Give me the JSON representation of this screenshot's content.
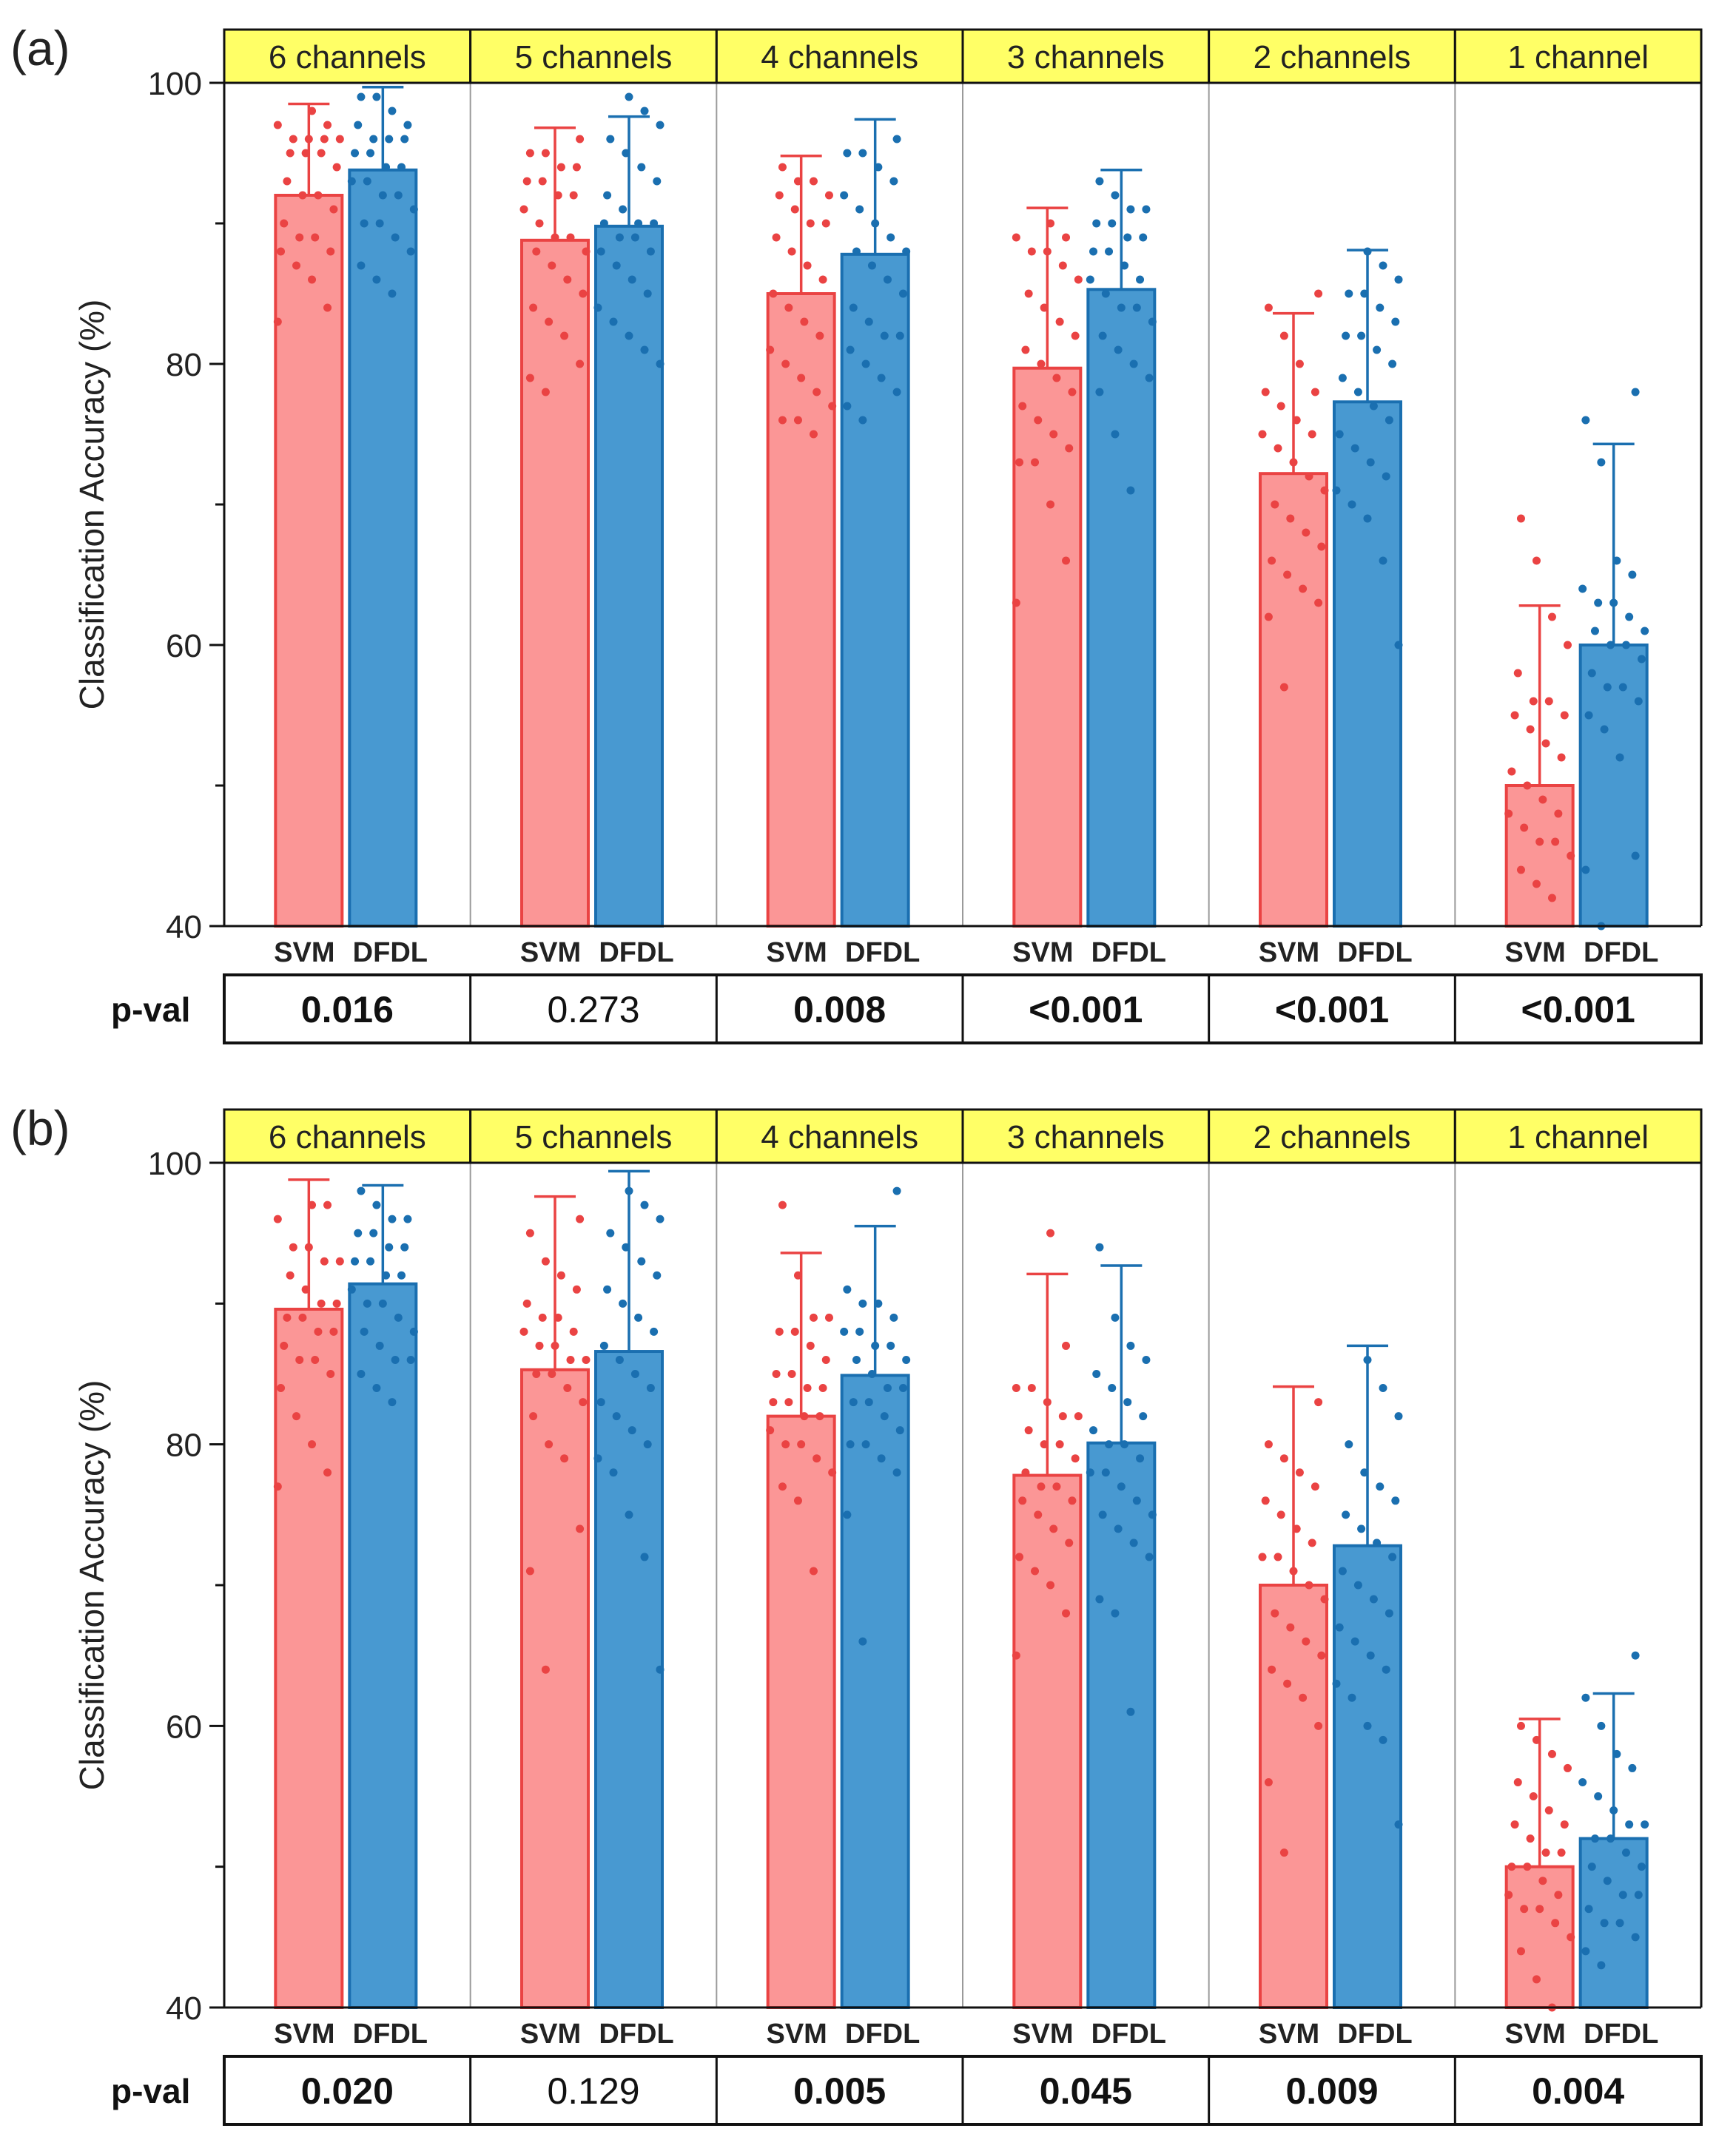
{
  "figure": {
    "colors": {
      "svm_fill": "#fb9696",
      "svm_edge": "#ea4343",
      "dfdl_fill": "#4899d1",
      "dfdl_edge": "#1a6fb0",
      "header_fill": "#ffff66",
      "separator": "#9a9a9a"
    }
  },
  "chart_data": [
    {
      "type": "bar",
      "panel_label": "(a)",
      "ylabel": "Classification Accuracy (%)",
      "ylim": [
        40,
        100
      ],
      "yticks": [
        "40",
        "60",
        "80",
        "100"
      ],
      "legend": [
        "SVM",
        "DFDL"
      ],
      "bar_labels": [
        "SVM",
        "DFDL"
      ],
      "table_label": "p-val",
      "categories": [
        "6 channels",
        "5 channels",
        "4 channels",
        "3 channels",
        "2 channels",
        "1 channel"
      ],
      "pvals": [
        "0.016",
        "0.273",
        "0.008",
        "<0.001",
        "<0.001",
        "<0.001"
      ],
      "pval_bold": [
        true,
        false,
        true,
        true,
        true,
        true
      ],
      "series": [
        {
          "name": "SVM",
          "values": [
            92.0,
            88.8,
            85.0,
            79.7,
            72.2,
            50.0
          ],
          "error": [
            6.5,
            8.0,
            9.8,
            11.4,
            11.4,
            12.8
          ],
          "points": [
            [
              83,
              84,
              86,
              87,
              88,
              88,
              89,
              89,
              90,
              91,
              92,
              92,
              93,
              94,
              95,
              95,
              95,
              96,
              96,
              96,
              96,
              97,
              97,
              98
            ],
            [
              78,
              79,
              80,
              82,
              83,
              84,
              85,
              86,
              87,
              88,
              88,
              89,
              89,
              90,
              91,
              92,
              92,
              93,
              93,
              94,
              94,
              95,
              95,
              96
            ],
            [
              75,
              76,
              76,
              77,
              78,
              79,
              80,
              81,
              82,
              83,
              84,
              85,
              86,
              87,
              88,
              89,
              90,
              90,
              91,
              92,
              92,
              93,
              93,
              94
            ],
            [
              63,
              66,
              70,
              73,
              73,
              74,
              75,
              76,
              77,
              78,
              79,
              80,
              81,
              82,
              83,
              84,
              85,
              86,
              87,
              88,
              88,
              89,
              89,
              90
            ],
            [
              57,
              62,
              63,
              64,
              65,
              66,
              67,
              68,
              69,
              70,
              71,
              72,
              73,
              74,
              75,
              75,
              76,
              77,
              78,
              78,
              80,
              82,
              84,
              85
            ],
            [
              42,
              43,
              44,
              45,
              46,
              46,
              47,
              48,
              48,
              49,
              50,
              51,
              52,
              53,
              54,
              55,
              55,
              56,
              56,
              58,
              60,
              62,
              66,
              69
            ]
          ]
        },
        {
          "name": "DFDL",
          "values": [
            93.8,
            89.8,
            87.8,
            85.3,
            77.3,
            60.0
          ],
          "error": [
            5.9,
            7.8,
            9.6,
            8.5,
            10.8,
            14.3
          ],
          "points": [
            [
              85,
              86,
              87,
              88,
              89,
              90,
              90,
              91,
              92,
              92,
              93,
              93,
              94,
              94,
              95,
              95,
              96,
              96,
              96,
              97,
              97,
              98,
              99,
              99
            ],
            [
              80,
              81,
              82,
              83,
              84,
              85,
              86,
              87,
              88,
              88,
              89,
              89,
              90,
              90,
              90,
              91,
              92,
              93,
              94,
              95,
              96,
              97,
              98,
              99
            ],
            [
              76,
              77,
              78,
              79,
              80,
              81,
              82,
              82,
              83,
              84,
              85,
              86,
              87,
              88,
              88,
              89,
              90,
              91,
              92,
              93,
              94,
              95,
              95,
              96
            ],
            [
              71,
              75,
              78,
              79,
              80,
              81,
              82,
              83,
              84,
              84,
              85,
              86,
              86,
              87,
              88,
              88,
              89,
              89,
              90,
              90,
              91,
              91,
              92,
              93
            ],
            [
              60,
              66,
              69,
              70,
              71,
              72,
              73,
              74,
              75,
              76,
              77,
              78,
              79,
              80,
              81,
              82,
              82,
              83,
              84,
              85,
              85,
              86,
              87,
              88
            ],
            [
              40,
              44,
              45,
              52,
              54,
              55,
              56,
              57,
              57,
              58,
              59,
              60,
              60,
              61,
              61,
              62,
              63,
              63,
              64,
              65,
              66,
              73,
              76,
              78
            ]
          ]
        }
      ]
    },
    {
      "type": "bar",
      "panel_label": "(b)",
      "ylabel": "Classification Accuracy (%)",
      "ylim": [
        40,
        100
      ],
      "yticks": [
        "40",
        "60",
        "80",
        "100"
      ],
      "legend": [
        "SVM",
        "DFDL"
      ],
      "bar_labels": [
        "SVM",
        "DFDL"
      ],
      "table_label": "p-val",
      "categories": [
        "6 channels",
        "5 channels",
        "4 channels",
        "3 channels",
        "2 channels",
        "1 channel"
      ],
      "pvals": [
        "0.020",
        "0.129",
        "0.005",
        "0.045",
        "0.009",
        "0.004"
      ],
      "pval_bold": [
        true,
        false,
        true,
        true,
        true,
        true
      ],
      "series": [
        {
          "name": "SVM",
          "values": [
            89.6,
            85.3,
            82.0,
            77.8,
            70.0,
            50.0
          ],
          "error": [
            9.2,
            12.3,
            11.6,
            14.3,
            14.1,
            10.5
          ],
          "points": [
            [
              77,
              78,
              80,
              82,
              84,
              85,
              86,
              86,
              87,
              88,
              88,
              89,
              89,
              90,
              90,
              91,
              92,
              93,
              93,
              94,
              94,
              96,
              97,
              97
            ],
            [
              64,
              71,
              74,
              79,
              80,
              82,
              83,
              84,
              85,
              85,
              86,
              86,
              87,
              87,
              88,
              88,
              89,
              89,
              90,
              91,
              92,
              93,
              95,
              96
            ],
            [
              71,
              76,
              77,
              78,
              79,
              80,
              80,
              81,
              82,
              82,
              83,
              83,
              84,
              84,
              85,
              85,
              86,
              87,
              88,
              88,
              89,
              89,
              92,
              97
            ],
            [
              65,
              68,
              70,
              71,
              72,
              73,
              74,
              75,
              76,
              76,
              77,
              77,
              78,
              79,
              80,
              80,
              81,
              82,
              82,
              83,
              84,
              84,
              87,
              95
            ],
            [
              51,
              56,
              60,
              62,
              63,
              64,
              65,
              66,
              67,
              68,
              69,
              70,
              71,
              72,
              72,
              73,
              74,
              75,
              76,
              77,
              78,
              79,
              80,
              83
            ],
            [
              40,
              42,
              44,
              45,
              46,
              47,
              47,
              48,
              48,
              49,
              50,
              50,
              51,
              51,
              52,
              53,
              53,
              54,
              55,
              56,
              57,
              58,
              59,
              60
            ]
          ]
        },
        {
          "name": "DFDL",
          "values": [
            91.4,
            86.6,
            84.9,
            80.1,
            72.8,
            52.0
          ],
          "error": [
            7.0,
            12.8,
            10.6,
            12.6,
            14.2,
            10.3
          ],
          "points": [
            [
              83,
              84,
              85,
              86,
              86,
              87,
              88,
              88,
              89,
              90,
              90,
              91,
              92,
              92,
              93,
              93,
              94,
              94,
              95,
              95,
              96,
              96,
              97,
              98
            ],
            [
              64,
              72,
              75,
              78,
              79,
              80,
              81,
              82,
              83,
              84,
              85,
              86,
              87,
              88,
              89,
              90,
              91,
              92,
              93,
              94,
              95,
              96,
              97,
              98
            ],
            [
              66,
              75,
              78,
              79,
              80,
              80,
              81,
              82,
              83,
              83,
              84,
              84,
              85,
              86,
              86,
              87,
              87,
              88,
              88,
              89,
              90,
              90,
              91,
              98
            ],
            [
              61,
              68,
              69,
              72,
              73,
              74,
              75,
              75,
              76,
              77,
              78,
              78,
              79,
              80,
              80,
              81,
              82,
              83,
              84,
              85,
              86,
              87,
              89,
              94
            ],
            [
              53,
              59,
              60,
              62,
              63,
              64,
              65,
              66,
              67,
              68,
              69,
              70,
              71,
              72,
              73,
              74,
              75,
              76,
              77,
              78,
              80,
              82,
              84,
              86
            ],
            [
              43,
              44,
              45,
              46,
              46,
              47,
              48,
              48,
              49,
              50,
              50,
              51,
              52,
              52,
              53,
              53,
              54,
              55,
              56,
              57,
              58,
              60,
              62,
              65
            ]
          ]
        }
      ]
    }
  ]
}
